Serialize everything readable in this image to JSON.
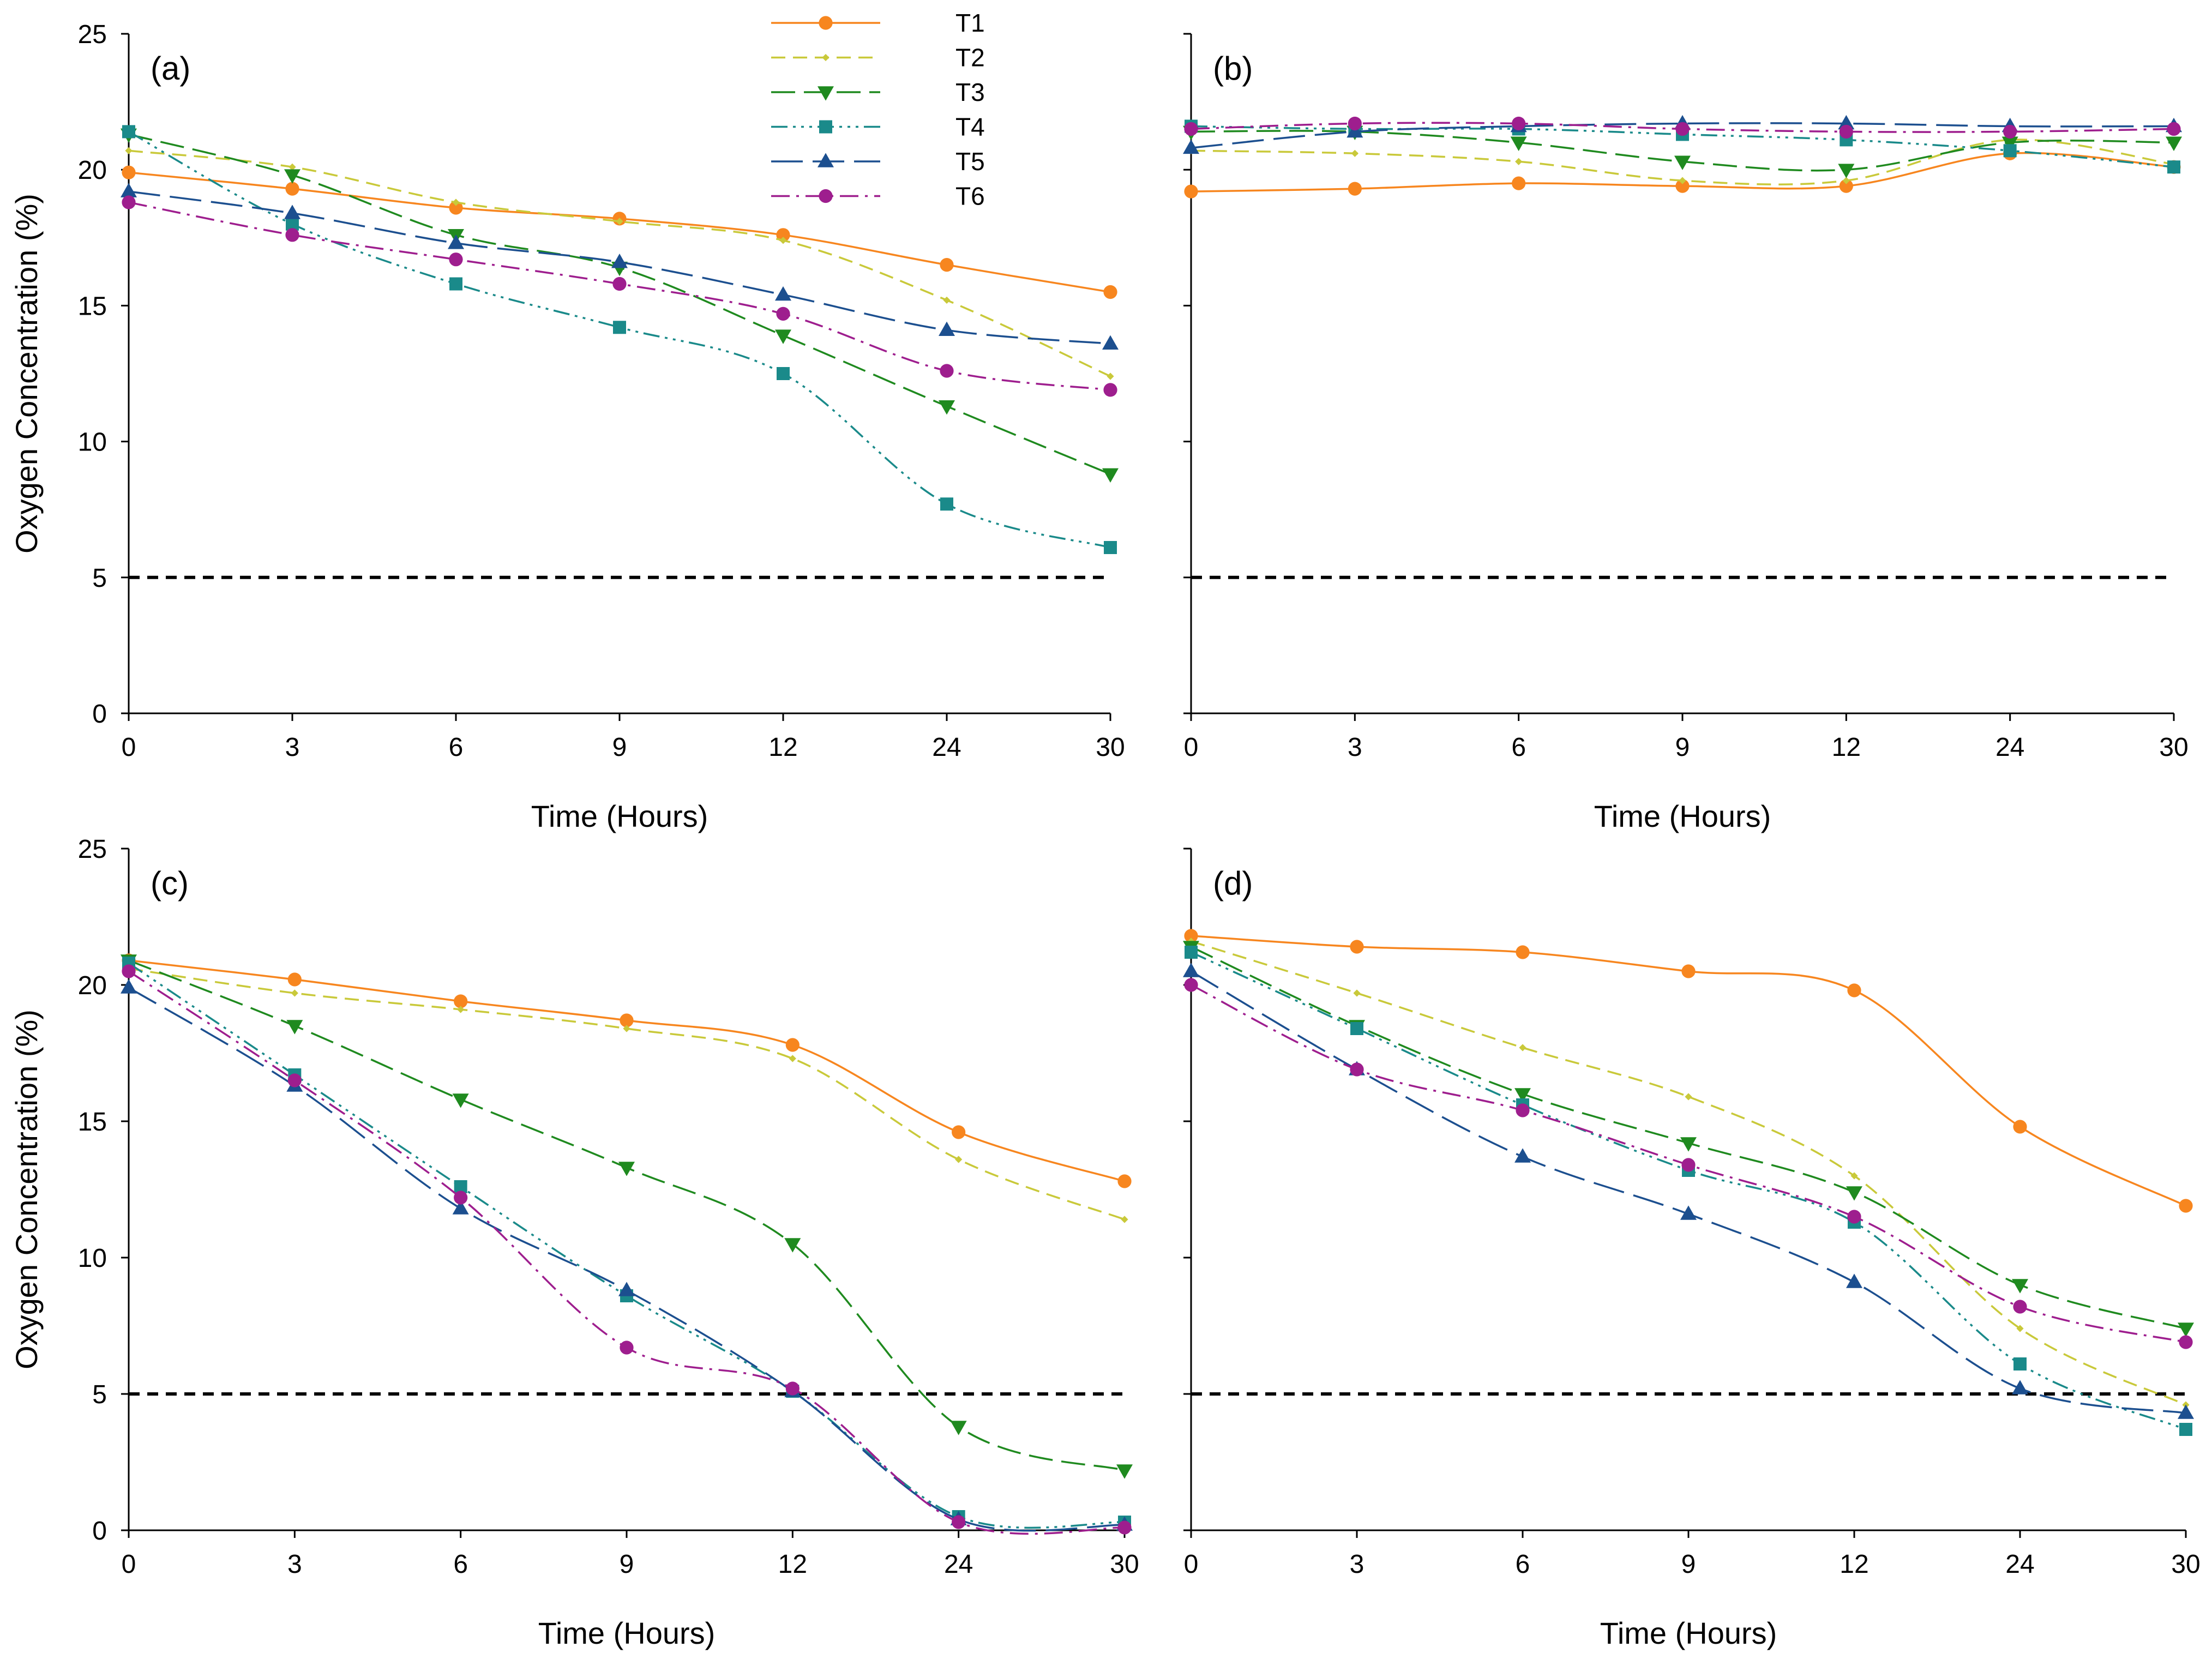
{
  "figure": {
    "ylabel": "Oxygen Concentration (%)",
    "xlabel": "Time (Hours)"
  },
  "colors": {
    "T1": "#f7861f",
    "T2": "#c9c93a",
    "T3": "#1f8a1f",
    "T4": "#1a8a8a",
    "T5": "#1c4f8f",
    "T6": "#9e1e8e",
    "threshold": "#000000"
  },
  "legend": [
    {
      "name": "T1",
      "marker": "circle"
    },
    {
      "name": "T2",
      "marker": "diamond-small"
    },
    {
      "name": "T3",
      "marker": "triangle-down"
    },
    {
      "name": "T4",
      "marker": "square"
    },
    {
      "name": "T5",
      "marker": "triangle-up"
    },
    {
      "name": "T6",
      "marker": "circle"
    }
  ],
  "chart_data": [
    {
      "type": "line",
      "title": "(a)",
      "categories": [
        "0",
        "3",
        "6",
        "9",
        "12",
        "24",
        "30"
      ],
      "xlabel": "Time (Hours)",
      "ylabel": "Oxygen Concentration (%)",
      "ylim": [
        0,
        25
      ],
      "yticks": [
        0,
        5,
        10,
        15,
        20,
        25
      ],
      "threshold": 5,
      "series": [
        {
          "name": "T1",
          "values": [
            19.9,
            19.3,
            18.6,
            18.2,
            17.6,
            16.5,
            15.5
          ]
        },
        {
          "name": "T2",
          "values": [
            20.7,
            20.1,
            18.8,
            18.1,
            17.4,
            15.2,
            12.4
          ]
        },
        {
          "name": "T3",
          "values": [
            21.3,
            19.8,
            17.6,
            16.4,
            13.9,
            11.3,
            8.8
          ]
        },
        {
          "name": "T4",
          "values": [
            21.4,
            18.0,
            15.8,
            14.2,
            12.5,
            7.7,
            6.1
          ]
        },
        {
          "name": "T5",
          "values": [
            19.2,
            18.4,
            17.3,
            16.6,
            15.4,
            14.1,
            13.6
          ]
        },
        {
          "name": "T6",
          "values": [
            18.8,
            17.6,
            16.7,
            15.8,
            14.7,
            12.6,
            11.9
          ]
        }
      ]
    },
    {
      "type": "line",
      "title": "(b)",
      "categories": [
        "0",
        "3",
        "6",
        "9",
        "12",
        "24",
        "30"
      ],
      "xlabel": "Time (Hours)",
      "ylabel": "",
      "ylim": [
        0,
        25
      ],
      "yticks": [
        0,
        5,
        10,
        15,
        20,
        25
      ],
      "threshold": 5,
      "series": [
        {
          "name": "T1",
          "values": [
            19.2,
            19.3,
            19.5,
            19.4,
            19.4,
            20.6,
            20.1
          ]
        },
        {
          "name": "T2",
          "values": [
            20.7,
            20.6,
            20.3,
            19.6,
            19.6,
            21.1,
            20.2
          ]
        },
        {
          "name": "T3",
          "values": [
            21.4,
            21.4,
            21.0,
            20.3,
            20.0,
            21.0,
            21.0
          ]
        },
        {
          "name": "T4",
          "values": [
            21.6,
            21.5,
            21.5,
            21.3,
            21.1,
            20.7,
            20.1
          ]
        },
        {
          "name": "T5",
          "values": [
            20.8,
            21.4,
            21.6,
            21.7,
            21.7,
            21.6,
            21.6
          ]
        },
        {
          "name": "T6",
          "values": [
            21.5,
            21.7,
            21.7,
            21.5,
            21.4,
            21.4,
            21.5
          ]
        }
      ]
    },
    {
      "type": "line",
      "title": "(c)",
      "categories": [
        "0",
        "3",
        "6",
        "9",
        "12",
        "24",
        "30"
      ],
      "xlabel": "Time (Hours)",
      "ylabel": "Oxygen Concentration (%)",
      "ylim": [
        0,
        25
      ],
      "yticks": [
        0,
        5,
        10,
        15,
        20,
        25
      ],
      "threshold": 5,
      "series": [
        {
          "name": "T1",
          "values": [
            20.9,
            20.2,
            19.4,
            18.7,
            17.8,
            14.6,
            12.8
          ]
        },
        {
          "name": "T2",
          "values": [
            20.6,
            19.7,
            19.1,
            18.4,
            17.3,
            13.6,
            11.4
          ]
        },
        {
          "name": "T3",
          "values": [
            20.9,
            18.5,
            15.8,
            13.3,
            10.5,
            3.8,
            2.2
          ]
        },
        {
          "name": "T4",
          "values": [
            20.8,
            16.7,
            12.6,
            8.6,
            5.1,
            0.5,
            0.3
          ]
        },
        {
          "name": "T5",
          "values": [
            19.9,
            16.3,
            11.8,
            8.8,
            5.1,
            0.4,
            0.2
          ]
        },
        {
          "name": "T6",
          "values": [
            20.5,
            16.5,
            12.2,
            6.7,
            5.2,
            0.3,
            0.1
          ]
        }
      ]
    },
    {
      "type": "line",
      "title": "(d)",
      "categories": [
        "0",
        "3",
        "6",
        "9",
        "12",
        "24",
        "30"
      ],
      "xlabel": "Time (Hours)",
      "ylabel": "",
      "ylim": [
        0,
        25
      ],
      "yticks": [
        0,
        5,
        10,
        15,
        20,
        25
      ],
      "threshold": 5,
      "series": [
        {
          "name": "T1",
          "values": [
            21.8,
            21.4,
            21.2,
            20.5,
            19.8,
            14.8,
            11.9
          ]
        },
        {
          "name": "T2",
          "values": [
            21.6,
            19.7,
            17.7,
            15.9,
            13.0,
            7.4,
            4.6
          ]
        },
        {
          "name": "T3",
          "values": [
            21.4,
            18.5,
            16.0,
            14.2,
            12.4,
            9.0,
            7.4
          ]
        },
        {
          "name": "T4",
          "values": [
            21.2,
            18.4,
            15.6,
            13.2,
            11.3,
            6.1,
            3.7
          ]
        },
        {
          "name": "T5",
          "values": [
            20.5,
            16.9,
            13.7,
            11.6,
            9.1,
            5.2,
            4.3
          ]
        },
        {
          "name": "T6",
          "values": [
            20.0,
            16.9,
            15.4,
            13.4,
            11.5,
            8.2,
            6.9
          ]
        }
      ]
    }
  ]
}
